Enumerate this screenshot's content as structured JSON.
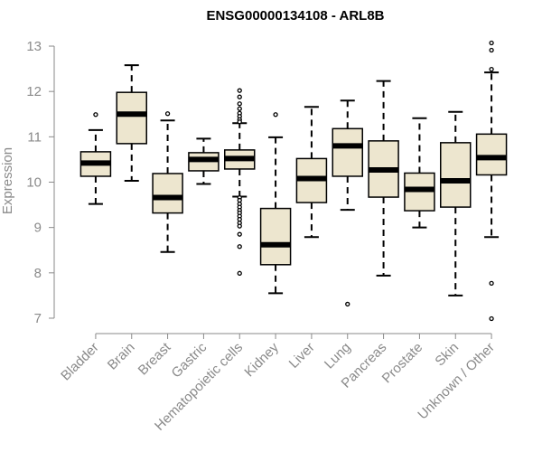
{
  "chart_data": {
    "type": "boxplot",
    "title": "ENSG00000134108 - ARL8B",
    "xlabel": "",
    "ylabel": "Expression",
    "ylim": [
      6.9,
      13.1
    ],
    "yticks": [
      7,
      8,
      9,
      10,
      11,
      12,
      13
    ],
    "grid": false,
    "colors": {
      "box_fill": "#ede6cf",
      "box_stroke": "#000000",
      "axis": "#8a8a8a",
      "median": "#000000"
    },
    "categories": [
      "Bladder",
      "Brain",
      "Breast",
      "Gastric",
      "Hematopoietic cells",
      "Kidney",
      "Liver",
      "Lung",
      "Pancreas",
      "Prostate",
      "Skin",
      "Unknown / Other"
    ],
    "boxes": [
      {
        "category": "Bladder",
        "whisker_low": 9.52,
        "q1": 10.13,
        "median": 10.42,
        "q3": 10.67,
        "whisker_high": 11.15,
        "outliers": [
          11.49
        ]
      },
      {
        "category": "Brain",
        "whisker_low": 10.03,
        "q1": 10.85,
        "median": 11.5,
        "q3": 11.98,
        "whisker_high": 12.58,
        "outliers": []
      },
      {
        "category": "Breast",
        "whisker_low": 8.46,
        "q1": 9.32,
        "median": 9.66,
        "q3": 10.19,
        "whisker_high": 11.36,
        "outliers": [
          11.51
        ]
      },
      {
        "category": "Gastric",
        "whisker_low": 9.96,
        "q1": 10.25,
        "median": 10.5,
        "q3": 10.65,
        "whisker_high": 10.96,
        "outliers": []
      },
      {
        "category": "Hematopoietic cells",
        "whisker_low": 9.68,
        "q1": 10.29,
        "median": 10.52,
        "q3": 10.71,
        "whisker_high": 11.3,
        "outliers": [
          12.02,
          11.88,
          11.73,
          11.62,
          11.52,
          11.45,
          11.38,
          11.33,
          9.66,
          9.6,
          9.52,
          9.45,
          9.38,
          9.32,
          9.25,
          9.18,
          9.1,
          9.03,
          8.85,
          8.58,
          7.99
        ]
      },
      {
        "category": "Kidney",
        "whisker_low": 7.55,
        "q1": 8.18,
        "median": 8.62,
        "q3": 9.42,
        "whisker_high": 10.99,
        "outliers": [
          11.49
        ]
      },
      {
        "category": "Liver",
        "whisker_low": 8.79,
        "q1": 9.55,
        "median": 10.08,
        "q3": 10.52,
        "whisker_high": 11.66,
        "outliers": []
      },
      {
        "category": "Lung",
        "whisker_low": 9.39,
        "q1": 10.13,
        "median": 10.8,
        "q3": 11.18,
        "whisker_high": 11.8,
        "outliers": [
          7.31
        ]
      },
      {
        "category": "Pancreas",
        "whisker_low": 7.94,
        "q1": 9.67,
        "median": 10.27,
        "q3": 10.91,
        "whisker_high": 12.23,
        "outliers": []
      },
      {
        "category": "Prostate",
        "whisker_low": 9.0,
        "q1": 9.37,
        "median": 9.84,
        "q3": 10.2,
        "whisker_high": 11.41,
        "outliers": []
      },
      {
        "category": "Skin",
        "whisker_low": 7.5,
        "q1": 9.45,
        "median": 10.03,
        "q3": 10.87,
        "whisker_high": 11.55,
        "outliers": []
      },
      {
        "category": "Unknown / Other",
        "whisker_low": 8.79,
        "q1": 10.16,
        "median": 10.54,
        "q3": 11.06,
        "whisker_high": 12.42,
        "outliers": [
          13.07,
          12.91,
          12.49,
          7.77,
          6.99
        ]
      }
    ]
  }
}
